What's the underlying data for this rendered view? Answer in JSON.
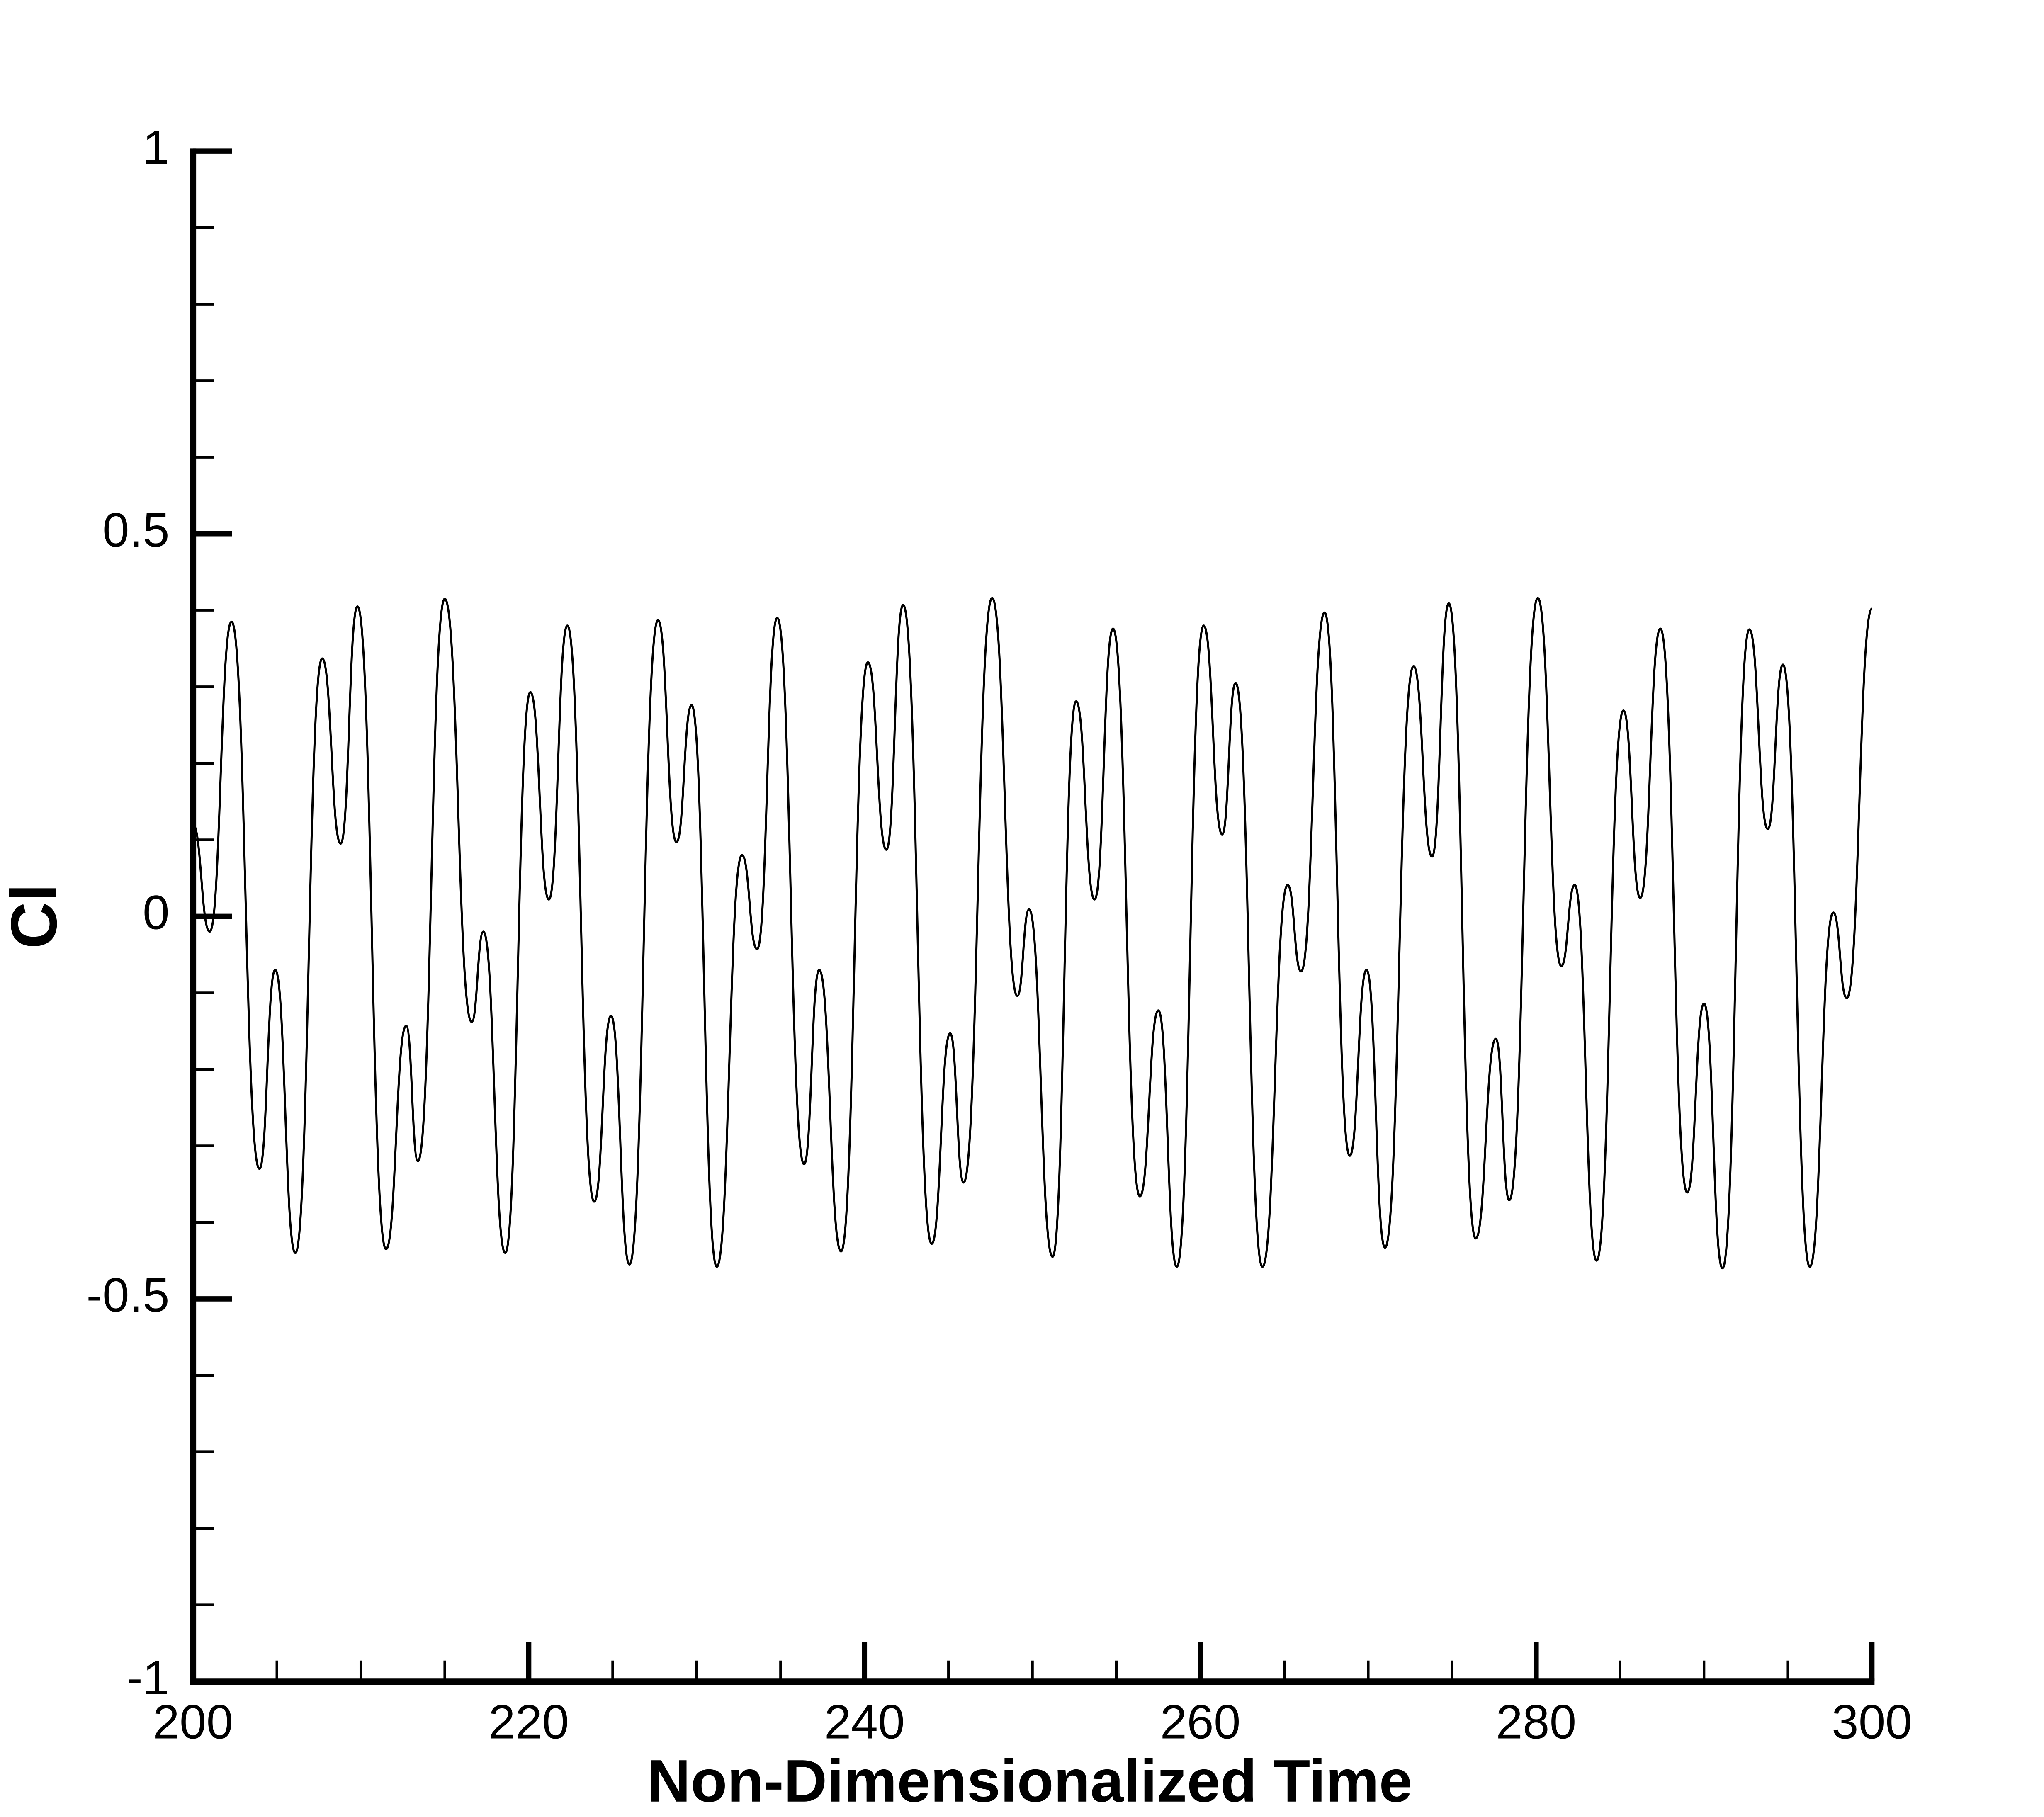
{
  "chart_data": {
    "type": "line",
    "x_label": "Non-Dimensionalized Time",
    "y_label": "Cl",
    "color": "#000000",
    "x": [
      200,
      201.0,
      202.3,
      203.96,
      204.9,
      206.1,
      207.7,
      208.8,
      209.8,
      211.5,
      212.7,
      213.4,
      215.0,
      216.6,
      217.3,
      218.6,
      220.1,
      221.2,
      222.3,
      223.9,
      224.9,
      226.0,
      227.7,
      228.8,
      229.7,
      231.2,
      232.7,
      233.6,
      234.8,
      236.4,
      237.3,
      238.6,
      240.2,
      241.3,
      242.3,
      244.0,
      245.1,
      245.9,
      247.6,
      249.1,
      249.8,
      251.2,
      252.6,
      253.7,
      254.8,
      256.4,
      257.5,
      258.6,
      260.2,
      261.3,
      262.1,
      263.7,
      265.2,
      266.0,
      267.4,
      268.9,
      269.9,
      271.0,
      272.7,
      273.8,
      274.8,
      276.4,
      277.6,
      278.4,
      280.1,
      281.5,
      282.3,
      283.6,
      285.2,
      286.2,
      287.4,
      289.0,
      290.0,
      291.1,
      292.7,
      293.8,
      294.7,
      296.3,
      297.7,
      298.5,
      300.0
    ],
    "values": [
      0.12,
      -0.02,
      0.385,
      -0.33,
      -0.07,
      -0.44,
      0.337,
      0.095,
      0.405,
      -0.435,
      -0.143,
      -0.32,
      0.415,
      -0.138,
      -0.02,
      -0.44,
      0.293,
      0.022,
      0.38,
      -0.373,
      -0.13,
      -0.455,
      0.387,
      0.097,
      0.276,
      -0.458,
      0.08,
      -0.043,
      0.39,
      -0.324,
      -0.07,
      -0.438,
      0.332,
      0.087,
      0.407,
      -0.428,
      -0.153,
      -0.348,
      0.416,
      -0.104,
      0.009,
      -0.445,
      0.281,
      0.022,
      0.376,
      -0.366,
      -0.123,
      -0.458,
      0.38,
      0.107,
      0.305,
      -0.458,
      0.041,
      -0.072,
      0.397,
      -0.313,
      -0.07,
      -0.433,
      0.327,
      0.078,
      0.409,
      -0.421,
      -0.16,
      -0.371,
      0.416,
      -0.065,
      0.041,
      -0.45,
      0.269,
      0.024,
      0.376,
      -0.361,
      -0.114,
      -0.46,
      0.375,
      0.114,
      0.329,
      -0.458,
      0.005,
      -0.107,
      0.402
    ],
    "xlim": [
      200,
      300
    ],
    "xticks": [
      200,
      220,
      240,
      260,
      280,
      300
    ],
    "x_minor_ticks": [
      205,
      210,
      215,
      225,
      230,
      235,
      245,
      250,
      255,
      265,
      270,
      275,
      285,
      290,
      295
    ],
    "ylim": [
      -1,
      1
    ],
    "yticks": [
      -1,
      -0.5,
      0,
      0.5,
      1
    ],
    "y_minor_ticks": [
      -0.9,
      -0.8,
      -0.7,
      -0.6,
      -0.4,
      -0.3,
      -0.2,
      -0.1,
      0.1,
      0.2,
      0.3,
      0.4,
      0.6,
      0.7,
      0.8,
      0.9
    ]
  }
}
